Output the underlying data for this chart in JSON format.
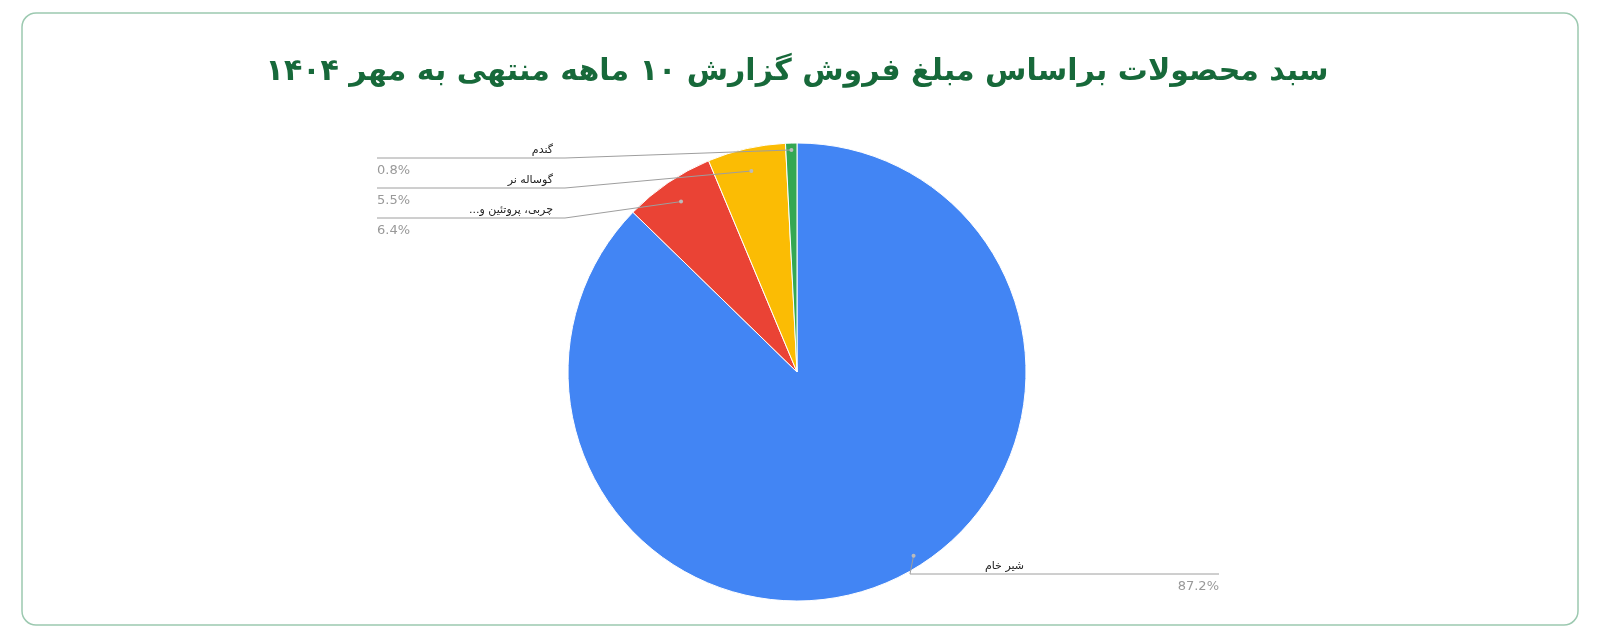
{
  "chart_data": {
    "type": "pie",
    "title": "سبد محصولات براساس مبلغ فروش گزارش ۱۰ ماهه منتهی به مهر ۱۴۰۴",
    "categories": [
      "شیر خام",
      "چربی، پروتئین و...",
      "گوساله نر",
      "گندم"
    ],
    "values": [
      87.2,
      6.4,
      5.5,
      0.8
    ],
    "value_labels": [
      "87.2%",
      "6.4%",
      "5.5%",
      "0.8%"
    ],
    "colors": [
      "#4285f4",
      "#ea4335",
      "#fbbc04",
      "#34a853"
    ]
  }
}
